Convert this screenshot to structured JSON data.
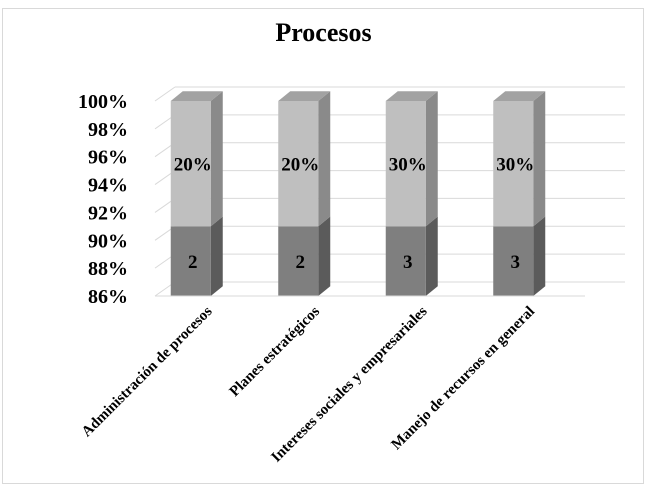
{
  "chart_data": {
    "type": "bar",
    "stacked_percent": true,
    "title": "Procesos",
    "categories": [
      "Administración de procesos",
      "Planes estratégicos",
      "Intereses sociales y empresariales",
      "Manejo de recursos en general"
    ],
    "series": [
      {
        "values": [
          2,
          2,
          3,
          3
        ],
        "labels": [
          "2",
          "2",
          "3",
          "3"
        ],
        "color": "#7f7f7f"
      },
      {
        "values": [
          20,
          20,
          30,
          30
        ],
        "labels": [
          "20%",
          "20%",
          "30%",
          "30%"
        ],
        "color": "#bfbfbf"
      }
    ],
    "ylim": [
      86,
      100
    ],
    "yticks": [
      "86%",
      "88%",
      "90%",
      "92%",
      "94%",
      "96%",
      "98%",
      "100%"
    ],
    "segment_boundary_percent": 91,
    "grid": true,
    "three_d": true
  }
}
